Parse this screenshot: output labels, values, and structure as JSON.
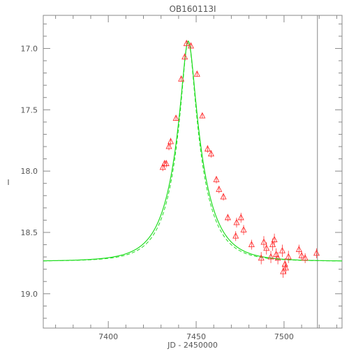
{
  "chart_data": {
    "type": "scatter",
    "title": "OB160113I",
    "xlabel": "JD - 2450000",
    "ylabel": "I",
    "xlim": [
      7363,
      7533
    ],
    "ylim": [
      19.28,
      16.73
    ],
    "y_inverted": true,
    "xticks": [
      7400,
      7450,
      7500
    ],
    "xtick_labels": [
      "7400",
      "7450",
      "7500"
    ],
    "yticks": [
      17.0,
      17.5,
      18.0,
      18.5,
      19.0
    ],
    "ytick_labels": [
      "17.0",
      "17.5",
      "18.0",
      "18.5",
      "19.0"
    ],
    "vertical_line_x": 7519,
    "point_color": "#ff3333",
    "model_color": "#22dd22",
    "axis_color": "#888888",
    "points": [
      {
        "x": 7431.0,
        "y": 17.97,
        "err": 0.03
      },
      {
        "x": 7432.0,
        "y": 17.94,
        "err": 0.03
      },
      {
        "x": 7433.0,
        "y": 17.94,
        "err": 0.03
      },
      {
        "x": 7434.5,
        "y": 17.8,
        "err": 0.03
      },
      {
        "x": 7435.5,
        "y": 17.76,
        "err": 0.03
      },
      {
        "x": 7438.5,
        "y": 17.57,
        "err": 0.02
      },
      {
        "x": 7441.5,
        "y": 17.25,
        "err": 0.02
      },
      {
        "x": 7443.5,
        "y": 17.07,
        "err": 0.02
      },
      {
        "x": 7444.5,
        "y": 16.96,
        "err": 0.02
      },
      {
        "x": 7447.0,
        "y": 16.98,
        "err": 0.02
      },
      {
        "x": 7450.5,
        "y": 17.21,
        "err": 0.02
      },
      {
        "x": 7453.5,
        "y": 17.55,
        "err": 0.02
      },
      {
        "x": 7456.5,
        "y": 17.82,
        "err": 0.03
      },
      {
        "x": 7458.5,
        "y": 17.86,
        "err": 0.03
      },
      {
        "x": 7461.5,
        "y": 18.07,
        "err": 0.03
      },
      {
        "x": 7463.0,
        "y": 18.15,
        "err": 0.03
      },
      {
        "x": 7465.5,
        "y": 18.21,
        "err": 0.03
      },
      {
        "x": 7468.0,
        "y": 18.38,
        "err": 0.03
      },
      {
        "x": 7472.5,
        "y": 18.53,
        "err": 0.04
      },
      {
        "x": 7473.0,
        "y": 18.42,
        "err": 0.04
      },
      {
        "x": 7475.5,
        "y": 18.38,
        "err": 0.04
      },
      {
        "x": 7477.0,
        "y": 18.48,
        "err": 0.04
      },
      {
        "x": 7481.5,
        "y": 18.6,
        "err": 0.04
      },
      {
        "x": 7487.0,
        "y": 18.71,
        "err": 0.05
      },
      {
        "x": 7488.5,
        "y": 18.58,
        "err": 0.05
      },
      {
        "x": 7490.0,
        "y": 18.63,
        "err": 0.05
      },
      {
        "x": 7492.5,
        "y": 18.7,
        "err": 0.05
      },
      {
        "x": 7493.5,
        "y": 18.6,
        "err": 0.05
      },
      {
        "x": 7494.5,
        "y": 18.56,
        "err": 0.05
      },
      {
        "x": 7495.5,
        "y": 18.68,
        "err": 0.05
      },
      {
        "x": 7496.5,
        "y": 18.71,
        "err": 0.05
      },
      {
        "x": 7499.0,
        "y": 18.65,
        "err": 0.05
      },
      {
        "x": 7499.5,
        "y": 18.82,
        "err": 0.05
      },
      {
        "x": 7500.5,
        "y": 18.76,
        "err": 0.05
      },
      {
        "x": 7501.0,
        "y": 18.79,
        "err": 0.05
      },
      {
        "x": 7502.5,
        "y": 18.7,
        "err": 0.05
      },
      {
        "x": 7508.5,
        "y": 18.64,
        "err": 0.04
      },
      {
        "x": 7510.0,
        "y": 18.69,
        "err": 0.04
      },
      {
        "x": 7512.0,
        "y": 18.71,
        "err": 0.04
      },
      {
        "x": 7518.5,
        "y": 18.67,
        "err": 0.04
      }
    ],
    "model": {
      "base_mag": 18.735,
      "peak_x": 7445.5,
      "peak_mag": 16.94,
      "tE": 17.5,
      "dashed_tE": 16.4
    }
  }
}
